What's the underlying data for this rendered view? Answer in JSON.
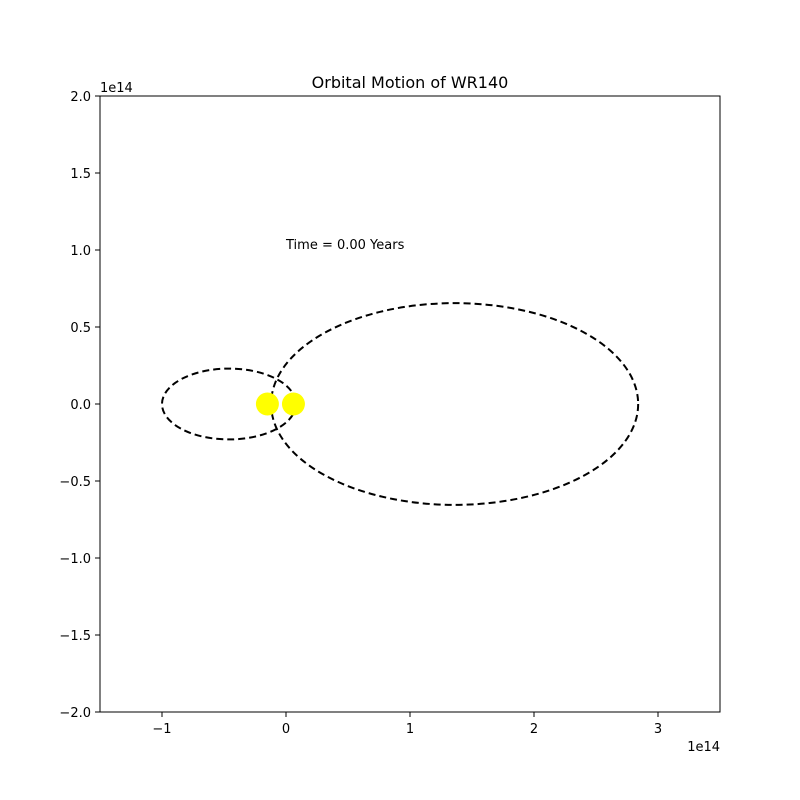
{
  "chart_data": {
    "type": "scatter",
    "title": "Orbital Motion of WR140",
    "xlabel": "",
    "ylabel": "",
    "x_offset_label": "1e14",
    "y_offset_label": "1e14",
    "xlim": [
      -1.5,
      3.5
    ],
    "ylim": [
      -2.0,
      2.0
    ],
    "x_ticks": [
      -1,
      0,
      1,
      2,
      3
    ],
    "x_tick_labels": [
      "−1",
      "0",
      "1",
      "2",
      "3"
    ],
    "y_ticks": [
      2.0,
      1.5,
      1.0,
      0.5,
      0.0,
      -0.5,
      -1.0,
      -1.5,
      -2.0
    ],
    "y_tick_labels": [
      "2.0",
      "1.5",
      "1.0",
      "0.5",
      "0.0",
      "−0.5",
      "−1.0",
      "−1.5",
      "−2.0"
    ],
    "grid": false,
    "orbits": [
      {
        "center": [
          -0.46,
          0.0
        ],
        "semi_major": 0.54,
        "semi_minor": 0.23,
        "style": "dashed",
        "color": "#000000"
      },
      {
        "center": [
          1.36,
          0.0
        ],
        "semi_major": 1.48,
        "semi_minor": 0.655,
        "style": "dashed",
        "color": "#000000"
      }
    ],
    "stars": [
      {
        "x": -0.15,
        "y": 0.0,
        "color": "#ffff00"
      },
      {
        "x": 0.06,
        "y": 0.0,
        "color": "#ffff00"
      }
    ],
    "annotation": {
      "text": "Time = 0.00 Years",
      "x": 0.0,
      "y": 1.0
    }
  }
}
